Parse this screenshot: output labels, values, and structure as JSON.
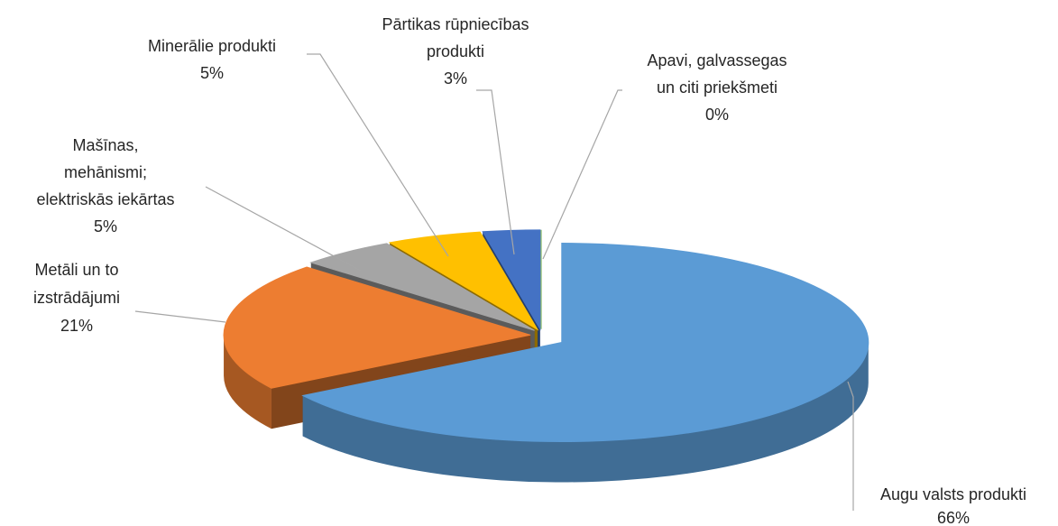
{
  "chart_data": {
    "type": "pie3d",
    "categories": [
      "Augu valsts produkti",
      "Metāli un to izstrādājumi",
      "Mašīnas, mehānismi; elektriskās iekārtas",
      "Minerālie produkti",
      "Pārtikas rūpniecības produkti",
      "Apavi, galvassegas un citi priekšmeti"
    ],
    "values": [
      66,
      21,
      5,
      5,
      3,
      0
    ],
    "value_labels": [
      "66%",
      "21%",
      "5%",
      "5%",
      "3%",
      "0%"
    ],
    "colors": [
      "#5b9bd5",
      "#ed7d31",
      "#a5a5a5",
      "#ffc000",
      "#4472c4",
      "#70ad47"
    ]
  }
}
